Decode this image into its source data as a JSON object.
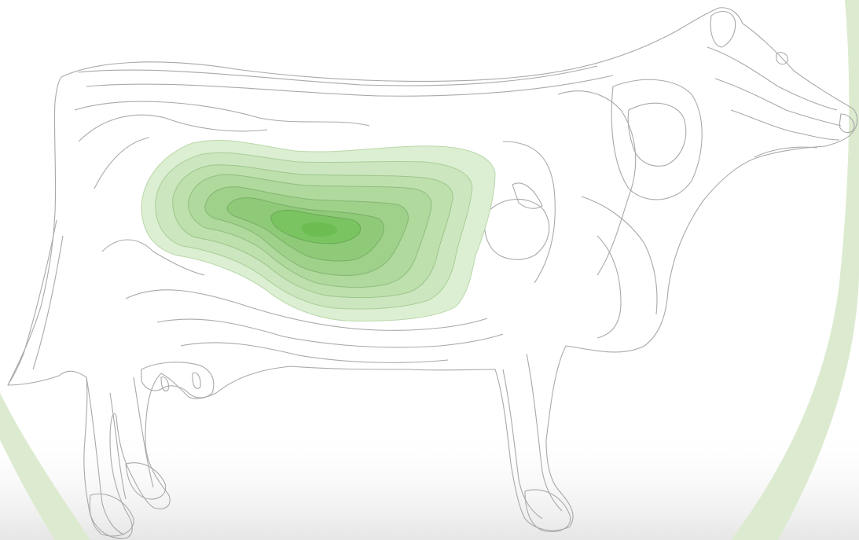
{
  "illustration": {
    "subject": "cow-contour-topography",
    "colors": {
      "background": "#ffffff",
      "floor_shade": "#eeeeee",
      "ring_green": "#dcebcf",
      "outline_gray": "#a9a9a9",
      "heat_light": "#dcefd2",
      "heat_mid": "#a6d995",
      "heat_core": "#78c45e"
    },
    "heat_levels": 7
  }
}
